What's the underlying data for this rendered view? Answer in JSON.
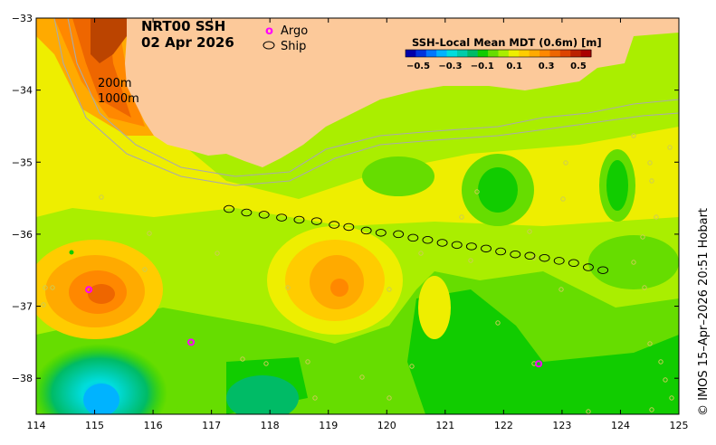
{
  "title_line1": "NRT00 SSH",
  "title_line2": "02 Apr 2026",
  "legend": {
    "argo_label": "Argo",
    "ship_label": "Ship",
    "argo_color": "#ff00ff",
    "ship_color": "#000000"
  },
  "contours": {
    "label_200": "200m",
    "label_1000": "1000m"
  },
  "colorbar": {
    "title": "SSH-Local Mean MDT (0.6m) [m]",
    "ticks": [
      "−0.5",
      "−0.3",
      "−0.1",
      "0.1",
      "0.3",
      "0.5"
    ],
    "colors": [
      "#0000aa",
      "#0033dd",
      "#0077ff",
      "#00b3ff",
      "#00dddd",
      "#00ccaa",
      "#00bb66",
      "#11cc00",
      "#66dd00",
      "#aaee00",
      "#eeee00",
      "#ffcc00",
      "#ffaa00",
      "#ff8800",
      "#ee6600",
      "#dd4400",
      "#bb2200",
      "#aa0000"
    ]
  },
  "credit": "© IMOS 15–Apr–2026 20:51 Hobart",
  "axes": {
    "x_ticks": [
      "114",
      "115",
      "116",
      "117",
      "118",
      "119",
      "120",
      "121",
      "122",
      "123",
      "124",
      "125"
    ],
    "y_ticks": [
      "−33",
      "−34",
      "−35",
      "−36",
      "−37",
      "−38"
    ],
    "lon_range": [
      114,
      125
    ],
    "lat_range": [
      -38.5,
      -33
    ]
  },
  "land_color": "#fcc99a",
  "argo_floats": [
    {
      "lon": 114.9,
      "lat": -36.77
    },
    {
      "lon": 116.65,
      "lat": -37.5
    },
    {
      "lon": 122.6,
      "lat": -37.8
    }
  ],
  "ship_track": [
    {
      "lon": 117.3,
      "lat": -35.65
    },
    {
      "lon": 117.6,
      "lat": -35.7
    },
    {
      "lon": 117.9,
      "lat": -35.73
    },
    {
      "lon": 118.2,
      "lat": -35.77
    },
    {
      "lon": 118.5,
      "lat": -35.8
    },
    {
      "lon": 118.8,
      "lat": -35.82
    },
    {
      "lon": 119.1,
      "lat": -35.87
    },
    {
      "lon": 119.35,
      "lat": -35.9
    },
    {
      "lon": 119.65,
      "lat": -35.95
    },
    {
      "lon": 119.9,
      "lat": -35.98
    },
    {
      "lon": 120.2,
      "lat": -36.0
    },
    {
      "lon": 120.45,
      "lat": -36.05
    },
    {
      "lon": 120.7,
      "lat": -36.08
    },
    {
      "lon": 120.95,
      "lat": -36.12
    },
    {
      "lon": 121.2,
      "lat": -36.15
    },
    {
      "lon": 121.45,
      "lat": -36.17
    },
    {
      "lon": 121.7,
      "lat": -36.2
    },
    {
      "lon": 121.95,
      "lat": -36.24
    },
    {
      "lon": 122.2,
      "lat": -36.28
    },
    {
      "lon": 122.45,
      "lat": -36.3
    },
    {
      "lon": 122.7,
      "lat": -36.33
    },
    {
      "lon": 122.95,
      "lat": -36.37
    },
    {
      "lon": 123.2,
      "lat": -36.4
    },
    {
      "lon": 123.45,
      "lat": -36.46
    },
    {
      "lon": 123.7,
      "lat": -36.5
    }
  ]
}
